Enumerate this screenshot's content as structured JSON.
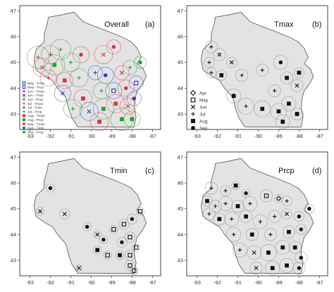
{
  "panels": [
    {
      "title": "Overall",
      "label": "(a)",
      "mode": "color",
      "legend": [
        {
          "text": "May - Tmin",
          "color": "#2a3fd1",
          "marker": "square"
        },
        {
          "text": "May - Prcp",
          "color": "#2a3fd1",
          "marker": "square"
        },
        {
          "text": "Jun - Tmax",
          "color": "#e0313c",
          "marker": "x"
        },
        {
          "text": "Jun - Tmin",
          "color": "#2a3fd1",
          "marker": "x"
        },
        {
          "text": "Jun - Prcp",
          "color": "#1fa42c",
          "marker": "x"
        },
        {
          "text": "Jul - Tmax",
          "color": "#e0313c",
          "marker": "plus"
        },
        {
          "text": "Jul - Tmin",
          "color": "#2a3fd1",
          "marker": "plus"
        },
        {
          "text": "Jul - Prcp",
          "color": "#1fa42c",
          "marker": "plus"
        },
        {
          "text": "Aug - Tmax",
          "color": "#e0313c",
          "marker": "filled-square"
        },
        {
          "text": "Aug - Prcp",
          "color": "#1fa42c",
          "marker": "filled-square"
        },
        {
          "text": "Sep - Tmax",
          "color": "#e0313c",
          "marker": "filled-circle"
        },
        {
          "text": "Sep - Tmin",
          "color": "#2a3fd1",
          "marker": "filled-circle"
        },
        {
          "text": "Sep - Prcp",
          "color": "#1fa42c",
          "marker": "filled-circle"
        }
      ]
    },
    {
      "title": "Tmax",
      "label": "(b)",
      "mode": "black",
      "legend": [
        {
          "text": "Apr",
          "marker": "diamond"
        },
        {
          "text": "May",
          "marker": "square"
        },
        {
          "text": "Jun",
          "marker": "x"
        },
        {
          "text": "Jul",
          "marker": "plus"
        },
        {
          "text": "Aug",
          "marker": "filled-square"
        },
        {
          "text": "Sep",
          "marker": "filled-circle"
        }
      ]
    },
    {
      "title": "Tmin",
      "label": "(c)",
      "mode": "black",
      "legend": []
    },
    {
      "title": "Prcp",
      "label": "(d)",
      "mode": "black",
      "legend": []
    }
  ],
  "axes": {
    "x_ticks": [
      "-93",
      "-92",
      "-91",
      "-90",
      "-89",
      "-88",
      "-87"
    ],
    "y_ticks": [
      "47",
      "46",
      "45",
      "44",
      "43"
    ],
    "xlim": [
      -93.5,
      -86.6
    ],
    "ylim": [
      42.4,
      47.2
    ]
  },
  "colors": {
    "tmax": "#e0313c",
    "tmin": "#2a3fd1",
    "prcp": "#1fa42c",
    "state_fill": "#e3e3e3",
    "marker_black": "#111111"
  },
  "stations": {
    "a": [
      {
        "lon": -92.6,
        "lat": 45.2,
        "m": "plus",
        "v": "prcp",
        "r": 0.55
      },
      {
        "lon": -92.0,
        "lat": 45.3,
        "m": "plus",
        "v": "tmax",
        "r": 0.45
      },
      {
        "lon": -91.5,
        "lat": 45.5,
        "m": "plus",
        "v": "prcp",
        "r": 0.5
      },
      {
        "lon": -92.4,
        "lat": 44.8,
        "m": "x",
        "v": "tmax",
        "r": 0.45
      },
      {
        "lon": -91.8,
        "lat": 44.9,
        "m": "filled-square",
        "v": "prcp",
        "r": 0.5
      },
      {
        "lon": -91.0,
        "lat": 45.0,
        "m": "plus",
        "v": "prcp",
        "r": 0.45
      },
      {
        "lon": -90.5,
        "lat": 45.3,
        "m": "filled-circle",
        "v": "tmax",
        "r": 0.4
      },
      {
        "lon": -89.4,
        "lat": 45.3,
        "m": "x",
        "v": "tmax",
        "r": 0.45
      },
      {
        "lon": -88.9,
        "lat": 45.6,
        "m": "filled-circle",
        "v": "tmax",
        "r": 0.35
      },
      {
        "lon": -92.1,
        "lat": 44.4,
        "m": "plus",
        "v": "tmax",
        "r": 0.4
      },
      {
        "lon": -91.3,
        "lat": 44.3,
        "m": "filled-square",
        "v": "tmax",
        "r": 0.4
      },
      {
        "lon": -90.6,
        "lat": 44.4,
        "m": "plus",
        "v": "prcp",
        "r": 0.45
      },
      {
        "lon": -89.8,
        "lat": 44.6,
        "m": "plus",
        "v": "tmin",
        "r": 0.35
      },
      {
        "lon": -89.3,
        "lat": 44.5,
        "m": "filled-circle",
        "v": "tmin",
        "r": 0.4
      },
      {
        "lon": -88.5,
        "lat": 44.6,
        "m": "x",
        "v": "tmax",
        "r": 0.35
      },
      {
        "lon": -88.1,
        "lat": 44.8,
        "m": "plus",
        "v": "prcp",
        "r": 0.35
      },
      {
        "lon": -87.6,
        "lat": 45.0,
        "m": "filled-circle",
        "v": "prcp",
        "r": 0.3
      },
      {
        "lon": -91.4,
        "lat": 43.8,
        "m": "x",
        "v": "tmin",
        "r": 0.4
      },
      {
        "lon": -90.4,
        "lat": 43.6,
        "m": "filled-square",
        "v": "tmax",
        "r": 0.45
      },
      {
        "lon": -89.5,
        "lat": 43.9,
        "m": "plus",
        "v": "prcp",
        "r": 0.4
      },
      {
        "lon": -88.9,
        "lat": 43.9,
        "m": "square",
        "v": "tmin",
        "r": 0.4
      },
      {
        "lon": -88.3,
        "lat": 44.0,
        "m": "filled-circle",
        "v": "tmax",
        "r": 0.4
      },
      {
        "lon": -87.8,
        "lat": 44.2,
        "m": "square",
        "v": "tmin",
        "r": 0.35
      },
      {
        "lon": -90.9,
        "lat": 43.2,
        "m": "plus",
        "v": "prcp",
        "r": 0.45
      },
      {
        "lon": -90.1,
        "lat": 43.1,
        "m": "x",
        "v": "tmin",
        "r": 0.45
      },
      {
        "lon": -89.4,
        "lat": 43.2,
        "m": "filled-square",
        "v": "prcp",
        "r": 0.5
      },
      {
        "lon": -88.8,
        "lat": 43.4,
        "m": "filled-square",
        "v": "tmax",
        "r": 0.45
      },
      {
        "lon": -88.2,
        "lat": 43.3,
        "m": "x",
        "v": "tmax",
        "r": 0.4
      },
      {
        "lon": -87.9,
        "lat": 43.6,
        "m": "filled-circle",
        "v": "tmin",
        "r": 0.35
      },
      {
        "lon": -88.5,
        "lat": 42.8,
        "m": "filled-square",
        "v": "prcp",
        "r": 0.55
      },
      {
        "lon": -89.6,
        "lat": 42.7,
        "m": "filled-square",
        "v": "tmax",
        "r": 0.45
      },
      {
        "lon": -88.0,
        "lat": 42.8,
        "m": "filled-square",
        "v": "prcp",
        "r": 0.4
      }
    ],
    "b": [
      {
        "lon": -92.3,
        "lat": 45.6,
        "m": "plus",
        "r": 0.3
      },
      {
        "lon": -91.9,
        "lat": 45.3,
        "m": "x",
        "r": 0.3
      },
      {
        "lon": -92.4,
        "lat": 45.0,
        "m": "plus",
        "r": 0.25
      },
      {
        "lon": -92.3,
        "lat": 44.6,
        "m": "plus",
        "r": 0.25
      },
      {
        "lon": -91.8,
        "lat": 44.5,
        "m": "filled-square",
        "r": 0.25
      },
      {
        "lon": -91.3,
        "lat": 45.0,
        "m": "x",
        "r": 0.25
      },
      {
        "lon": -90.8,
        "lat": 44.5,
        "m": "plus",
        "r": 0.3
      },
      {
        "lon": -89.8,
        "lat": 44.7,
        "m": "plus",
        "r": 0.3
      },
      {
        "lon": -88.9,
        "lat": 45.0,
        "m": "filled-circle",
        "r": 0.35
      },
      {
        "lon": -88.6,
        "lat": 44.4,
        "m": "filled-square",
        "r": 0.3
      },
      {
        "lon": -88.0,
        "lat": 44.6,
        "m": "filled-square",
        "r": 0.25
      },
      {
        "lon": -88.1,
        "lat": 44.1,
        "m": "x",
        "r": 0.3
      },
      {
        "lon": -89.2,
        "lat": 43.9,
        "m": "plus",
        "r": 0.3
      },
      {
        "lon": -91.2,
        "lat": 43.7,
        "m": "filled-square",
        "r": 0.35
      },
      {
        "lon": -90.6,
        "lat": 43.3,
        "m": "plus",
        "r": 0.4
      },
      {
        "lon": -89.8,
        "lat": 43.2,
        "m": "filled-square",
        "r": 0.4
      },
      {
        "lon": -89.0,
        "lat": 43.1,
        "m": "filled-square",
        "r": 0.4
      },
      {
        "lon": -88.5,
        "lat": 43.4,
        "m": "filled-square",
        "r": 0.35
      },
      {
        "lon": -88.1,
        "lat": 43.0,
        "m": "filled-square",
        "r": 0.3
      },
      {
        "lon": -88.8,
        "lat": 42.7,
        "m": "filled-square",
        "r": 0.35
      }
    ],
    "c": [
      {
        "lon": -92.0,
        "lat": 45.8,
        "m": "filled-circle",
        "r": 0.2
      },
      {
        "lon": -92.5,
        "lat": 44.9,
        "m": "x",
        "r": 0.2
      },
      {
        "lon": -91.3,
        "lat": 44.8,
        "m": "x",
        "r": 0.25
      },
      {
        "lon": -90.2,
        "lat": 44.3,
        "m": "filled-circle",
        "r": 0.2
      },
      {
        "lon": -89.7,
        "lat": 44.0,
        "m": "x",
        "r": 0.2
      },
      {
        "lon": -88.9,
        "lat": 44.2,
        "m": "square",
        "r": 0.2
      },
      {
        "lon": -88.4,
        "lat": 44.4,
        "m": "square",
        "r": 0.25
      },
      {
        "lon": -88.0,
        "lat": 44.6,
        "m": "filled-circle",
        "r": 0.25
      },
      {
        "lon": -87.6,
        "lat": 44.9,
        "m": "square",
        "r": 0.2
      },
      {
        "lon": -89.4,
        "lat": 43.8,
        "m": "filled-circle",
        "r": 0.2
      },
      {
        "lon": -88.5,
        "lat": 43.7,
        "m": "filled-circle",
        "r": 0.25
      },
      {
        "lon": -88.1,
        "lat": 43.9,
        "m": "square",
        "r": 0.25
      },
      {
        "lon": -87.8,
        "lat": 43.5,
        "m": "square",
        "r": 0.2
      },
      {
        "lon": -89.7,
        "lat": 43.4,
        "m": "filled-square",
        "r": 0.2
      },
      {
        "lon": -89.2,
        "lat": 43.2,
        "m": "square",
        "r": 0.2
      },
      {
        "lon": -88.6,
        "lat": 43.2,
        "m": "filled-square",
        "r": 0.2
      },
      {
        "lon": -88.1,
        "lat": 43.2,
        "m": "square",
        "r": 0.25
      },
      {
        "lon": -90.6,
        "lat": 42.7,
        "m": "x",
        "r": 0.15
      },
      {
        "lon": -88.1,
        "lat": 42.8,
        "m": "square",
        "r": 0.25
      },
      {
        "lon": -87.9,
        "lat": 42.6,
        "m": "square",
        "r": 0.2
      }
    ],
    "d": [
      {
        "lon": -92.3,
        "lat": 45.8,
        "m": "plus",
        "r": 0.3
      },
      {
        "lon": -91.6,
        "lat": 45.7,
        "m": "plus",
        "r": 0.25
      },
      {
        "lon": -91.1,
        "lat": 45.9,
        "m": "filled-square",
        "r": 0.2
      },
      {
        "lon": -90.6,
        "lat": 45.6,
        "m": "filled-circle",
        "r": 0.2
      },
      {
        "lon": -92.5,
        "lat": 45.3,
        "m": "filled-square",
        "r": 0.25
      },
      {
        "lon": -92.1,
        "lat": 45.1,
        "m": "plus",
        "r": 0.3
      },
      {
        "lon": -91.6,
        "lat": 45.2,
        "m": "plus",
        "r": 0.35
      },
      {
        "lon": -91.0,
        "lat": 45.1,
        "m": "filled-square",
        "r": 0.3
      },
      {
        "lon": -90.4,
        "lat": 45.2,
        "m": "plus",
        "r": 0.35
      },
      {
        "lon": -89.6,
        "lat": 45.5,
        "m": "square",
        "r": 0.3
      },
      {
        "lon": -89.0,
        "lat": 45.4,
        "m": "diamond",
        "r": 0.2
      },
      {
        "lon": -88.6,
        "lat": 45.3,
        "m": "plus",
        "r": 0.25
      },
      {
        "lon": -92.4,
        "lat": 44.8,
        "m": "plus",
        "r": 0.3
      },
      {
        "lon": -91.9,
        "lat": 44.6,
        "m": "filled-square",
        "r": 0.3
      },
      {
        "lon": -91.3,
        "lat": 44.6,
        "m": "plus",
        "r": 0.35
      },
      {
        "lon": -90.6,
        "lat": 44.7,
        "m": "filled-square",
        "r": 0.3
      },
      {
        "lon": -89.9,
        "lat": 44.5,
        "m": "plus",
        "r": 0.35
      },
      {
        "lon": -89.2,
        "lat": 44.7,
        "m": "plus",
        "r": 0.3
      },
      {
        "lon": -88.6,
        "lat": 44.8,
        "m": "x",
        "r": 0.25
      },
      {
        "lon": -88.0,
        "lat": 44.7,
        "m": "filled-circle",
        "r": 0.25
      },
      {
        "lon": -87.5,
        "lat": 45.0,
        "m": "filled-circle",
        "r": 0.25
      },
      {
        "lon": -91.2,
        "lat": 44.0,
        "m": "plus",
        "r": 0.35
      },
      {
        "lon": -90.3,
        "lat": 44.0,
        "m": "filled-square",
        "r": 0.3
      },
      {
        "lon": -89.4,
        "lat": 44.0,
        "m": "plus",
        "r": 0.3
      },
      {
        "lon": -88.5,
        "lat": 44.1,
        "m": "filled-square",
        "r": 0.3
      },
      {
        "lon": -87.9,
        "lat": 44.2,
        "m": "filled-circle",
        "r": 0.25
      },
      {
        "lon": -90.9,
        "lat": 43.4,
        "m": "plus",
        "r": 0.35
      },
      {
        "lon": -90.2,
        "lat": 43.3,
        "m": "x",
        "r": 0.35
      },
      {
        "lon": -89.5,
        "lat": 43.3,
        "m": "filled-square",
        "r": 0.4
      },
      {
        "lon": -88.8,
        "lat": 43.5,
        "m": "filled-square",
        "r": 0.35
      },
      {
        "lon": -88.2,
        "lat": 43.5,
        "m": "filled-square",
        "r": 0.3
      },
      {
        "lon": -87.9,
        "lat": 43.1,
        "m": "filled-circle",
        "r": 0.3
      },
      {
        "lon": -90.1,
        "lat": 42.7,
        "m": "x",
        "r": 0.3
      },
      {
        "lon": -89.3,
        "lat": 42.7,
        "m": "filled-square",
        "r": 0.35
      },
      {
        "lon": -88.6,
        "lat": 42.8,
        "m": "filled-square",
        "r": 0.35
      },
      {
        "lon": -88.0,
        "lat": 42.7,
        "m": "filled-circle",
        "r": 0.3
      }
    ]
  },
  "outline": [
    [
      -92.1,
      46.75
    ],
    [
      -91.4,
      46.85
    ],
    [
      -90.85,
      46.95
    ],
    [
      -90.4,
      46.58
    ],
    [
      -90.0,
      46.45
    ],
    [
      -89.5,
      46.3
    ],
    [
      -89.0,
      46.15
    ],
    [
      -88.4,
      45.95
    ],
    [
      -88.05,
      45.8
    ],
    [
      -87.75,
      45.55
    ],
    [
      -87.55,
      45.2
    ],
    [
      -87.75,
      44.95
    ],
    [
      -87.45,
      44.75
    ],
    [
      -87.3,
      44.45
    ],
    [
      -87.5,
      44.15
    ],
    [
      -87.75,
      43.9
    ],
    [
      -87.85,
      43.6
    ],
    [
      -87.9,
      43.25
    ],
    [
      -87.8,
      42.9
    ],
    [
      -87.9,
      42.49
    ],
    [
      -88.8,
      42.49
    ],
    [
      -89.8,
      42.5
    ],
    [
      -90.65,
      42.5
    ],
    [
      -90.95,
      42.85
    ],
    [
      -91.1,
      43.2
    ],
    [
      -91.25,
      43.65
    ],
    [
      -91.65,
      44.0
    ],
    [
      -91.9,
      44.3
    ],
    [
      -92.25,
      44.45
    ],
    [
      -92.7,
      44.7
    ],
    [
      -92.8,
      45.1
    ],
    [
      -92.7,
      45.5
    ],
    [
      -92.3,
      45.8
    ],
    [
      -92.3,
      46.1
    ],
    [
      -92.15,
      46.5
    ]
  ]
}
